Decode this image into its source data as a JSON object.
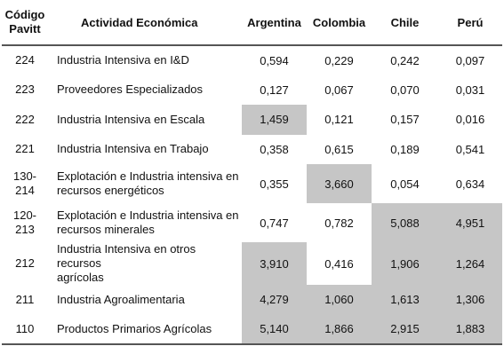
{
  "headers": {
    "code": [
      "Código",
      "Pavitt"
    ],
    "activity": "Actividad Económica",
    "countries": [
      "Argentina",
      "Colombia",
      "Chile",
      "Perú"
    ]
  },
  "rows": [
    {
      "code": [
        "224"
      ],
      "activity": [
        "Industria Intensiva en I&D"
      ],
      "values": [
        "0,594",
        "0,229",
        "0,242",
        "0,097"
      ],
      "shaded": [
        false,
        false,
        false,
        false
      ]
    },
    {
      "code": [
        "223"
      ],
      "activity": [
        "Proveedores Especializados"
      ],
      "values": [
        "0,127",
        "0,067",
        "0,070",
        "0,031"
      ],
      "shaded": [
        false,
        false,
        false,
        false
      ]
    },
    {
      "code": [
        "222"
      ],
      "activity": [
        "Industria Intensiva en Escala"
      ],
      "values": [
        "1,459",
        "0,121",
        "0,157",
        "0,016"
      ],
      "shaded": [
        true,
        false,
        false,
        false
      ]
    },
    {
      "code": [
        "221"
      ],
      "activity": [
        "Industria Intensiva en Trabajo"
      ],
      "values": [
        "0,358",
        "0,615",
        "0,189",
        "0,541"
      ],
      "shaded": [
        false,
        false,
        false,
        false
      ]
    },
    {
      "code": [
        "130-",
        "214"
      ],
      "activity": [
        "Explotación e Industria intensiva en",
        "recursos energéticos"
      ],
      "values": [
        "0,355",
        "3,660",
        "0,054",
        "0,634"
      ],
      "shaded": [
        false,
        true,
        false,
        false
      ]
    },
    {
      "code": [
        "120-",
        "213"
      ],
      "activity": [
        "Explotación e Industria intensiva en",
        "recursos minerales"
      ],
      "values": [
        "0,747",
        "0,782",
        "5,088",
        "4,951"
      ],
      "shaded": [
        false,
        false,
        true,
        true
      ]
    },
    {
      "code": [
        "212"
      ],
      "activity": [
        "Industria Intensiva en otros recursos",
        "agrícolas"
      ],
      "values": [
        "3,910",
        "0,416",
        "1,906",
        "1,264"
      ],
      "shaded": [
        true,
        false,
        true,
        true
      ]
    },
    {
      "code": [
        "211"
      ],
      "activity": [
        "Industria Agroalimentaria"
      ],
      "values": [
        "4,279",
        "1,060",
        "1,613",
        "1,306"
      ],
      "shaded": [
        true,
        true,
        true,
        true
      ]
    },
    {
      "code": [
        "110"
      ],
      "activity": [
        "Productos Primarios Agrícolas"
      ],
      "values": [
        "5,140",
        "1,866",
        "2,915",
        "1,883"
      ],
      "shaded": [
        true,
        true,
        true,
        true
      ]
    }
  ],
  "colors": {
    "shade": "#c6c6c6",
    "rule": "#555555",
    "text": "#111111"
  }
}
